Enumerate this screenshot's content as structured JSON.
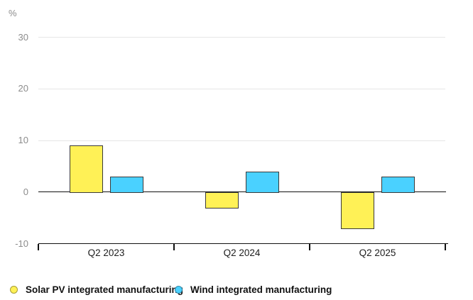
{
  "chart_data": {
    "type": "bar",
    "title": "",
    "ylabel": "%",
    "categories": [
      "Q2 2023",
      "Q2 2024",
      "Q2 2025"
    ],
    "series": [
      {
        "name": "Solar PV integrated manufacturing",
        "color": "#FFF156",
        "values": [
          9,
          -3,
          -7
        ]
      },
      {
        "name": "Wind integrated manufacturing",
        "color": "#4AD1FF",
        "values": [
          3,
          4,
          3
        ]
      }
    ],
    "ylim": [
      -10,
      30
    ],
    "yticks": [
      30,
      20,
      10,
      0,
      -10
    ],
    "grid": true,
    "gridline_color": "#e6e6e6",
    "axis_color": "#111111",
    "bar_border_color": "#3a3a3a",
    "tick_label_color": "#8c8c8c",
    "category_label_color": "#1d1d1d",
    "legend_position": "bottom"
  }
}
